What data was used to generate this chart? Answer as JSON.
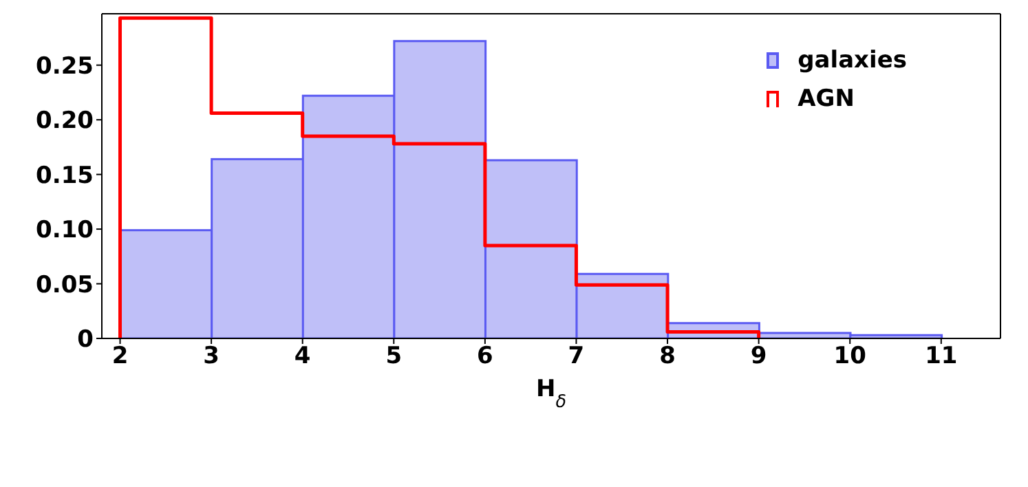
{
  "chart_data": {
    "type": "histogram",
    "xlabel": "H$_{δ}$",
    "bins": [
      2,
      3,
      4,
      5,
      6,
      7,
      8,
      9,
      10,
      11
    ],
    "series": [
      {
        "name": "galaxies",
        "color": "#bfbff8",
        "values": [
          0.099,
          0.164,
          0.222,
          0.272,
          0.163,
          0.059,
          0.014,
          0.005,
          0.003
        ]
      },
      {
        "name": "AGN",
        "type": "step",
        "color": "#ff0000",
        "x": [
          2,
          2,
          3,
          4,
          5,
          6,
          7,
          8,
          9
        ],
        "values": [
          0,
          0.293,
          0.206,
          0.185,
          0.178,
          0.085,
          0.049,
          0.006,
          0
        ]
      }
    ],
    "xlim": [
      1.8,
      11.65
    ],
    "xticks": [
      2,
      3,
      4,
      5,
      6,
      7,
      8,
      9,
      10,
      11
    ],
    "ylim": [
      0,
      0.297
    ],
    "yticks": [
      0,
      {
        "value": 0.05,
        "label": "0.05"
      },
      {
        "value": 0.1,
        "label": "0.10"
      },
      {
        "value": 0.15,
        "label": "0.15"
      },
      {
        "value": 0.2,
        "label": "0.20"
      },
      {
        "value": 0.25,
        "label": "0.25"
      }
    ],
    "legend": "top right"
  }
}
